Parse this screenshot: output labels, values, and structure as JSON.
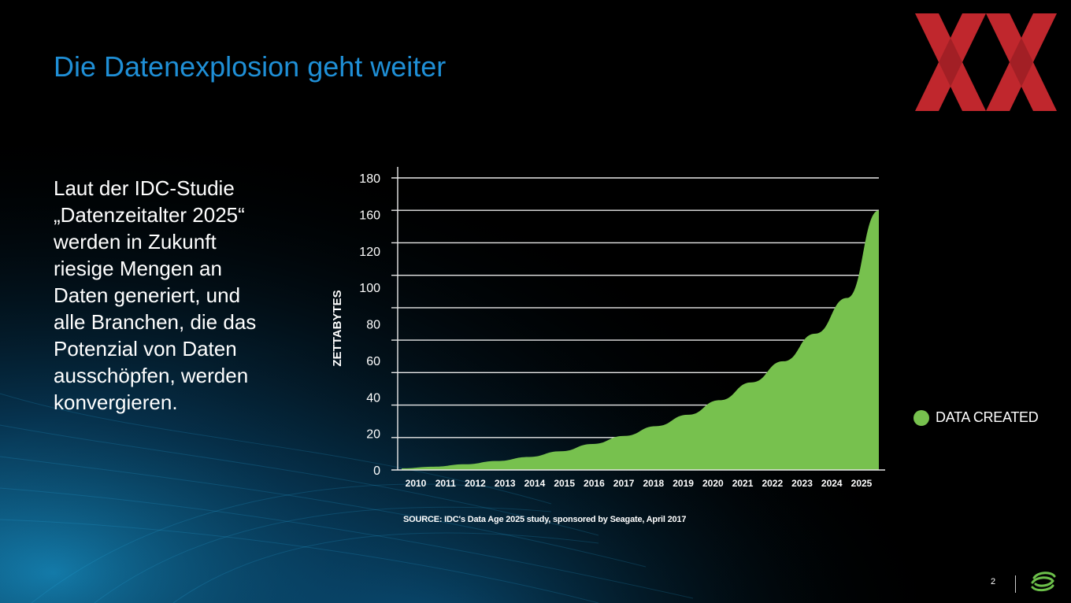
{
  "slide": {
    "title": "Die Datenexplosion  geht weiter",
    "body_text": "Laut der IDC-Studie\n„Datenzeitalter 2025“\nwerden in Zukunft\nriesige Mengen an\nDaten generiert, und\nalle Branchen, die das\nPotenzial von Daten\nausschöpfen, werden\nkonvergieren.",
    "source": "SOURCE: IDC's Data Age 2025 study, sponsored by Seagate, April 2017",
    "page_number": "2",
    "accent_color": "#1f8fd6",
    "logo_color": "#c0272d",
    "brand_color": "#6cc04a"
  },
  "chart_data": {
    "type": "area",
    "title": "",
    "xlabel": "",
    "ylabel": "ZETTABYTES",
    "x": [
      "2010",
      "2011",
      "2012",
      "2013",
      "2014",
      "2015",
      "2016",
      "2017",
      "2018",
      "2019",
      "2020",
      "2021",
      "2022",
      "2023",
      "2024",
      "2025"
    ],
    "series": [
      {
        "name": "DATA CREATED",
        "color": "#77c14e",
        "values": [
          1,
          2,
          3.5,
          5.5,
          8,
          11.5,
          16,
          21,
          27,
          34,
          43,
          54,
          67,
          84,
          106,
          160
        ]
      }
    ],
    "ylim": [
      0,
      180
    ],
    "yticks": [
      0,
      20,
      40,
      60,
      80,
      100,
      120,
      160,
      180
    ],
    "grid": true,
    "legend": "right"
  }
}
